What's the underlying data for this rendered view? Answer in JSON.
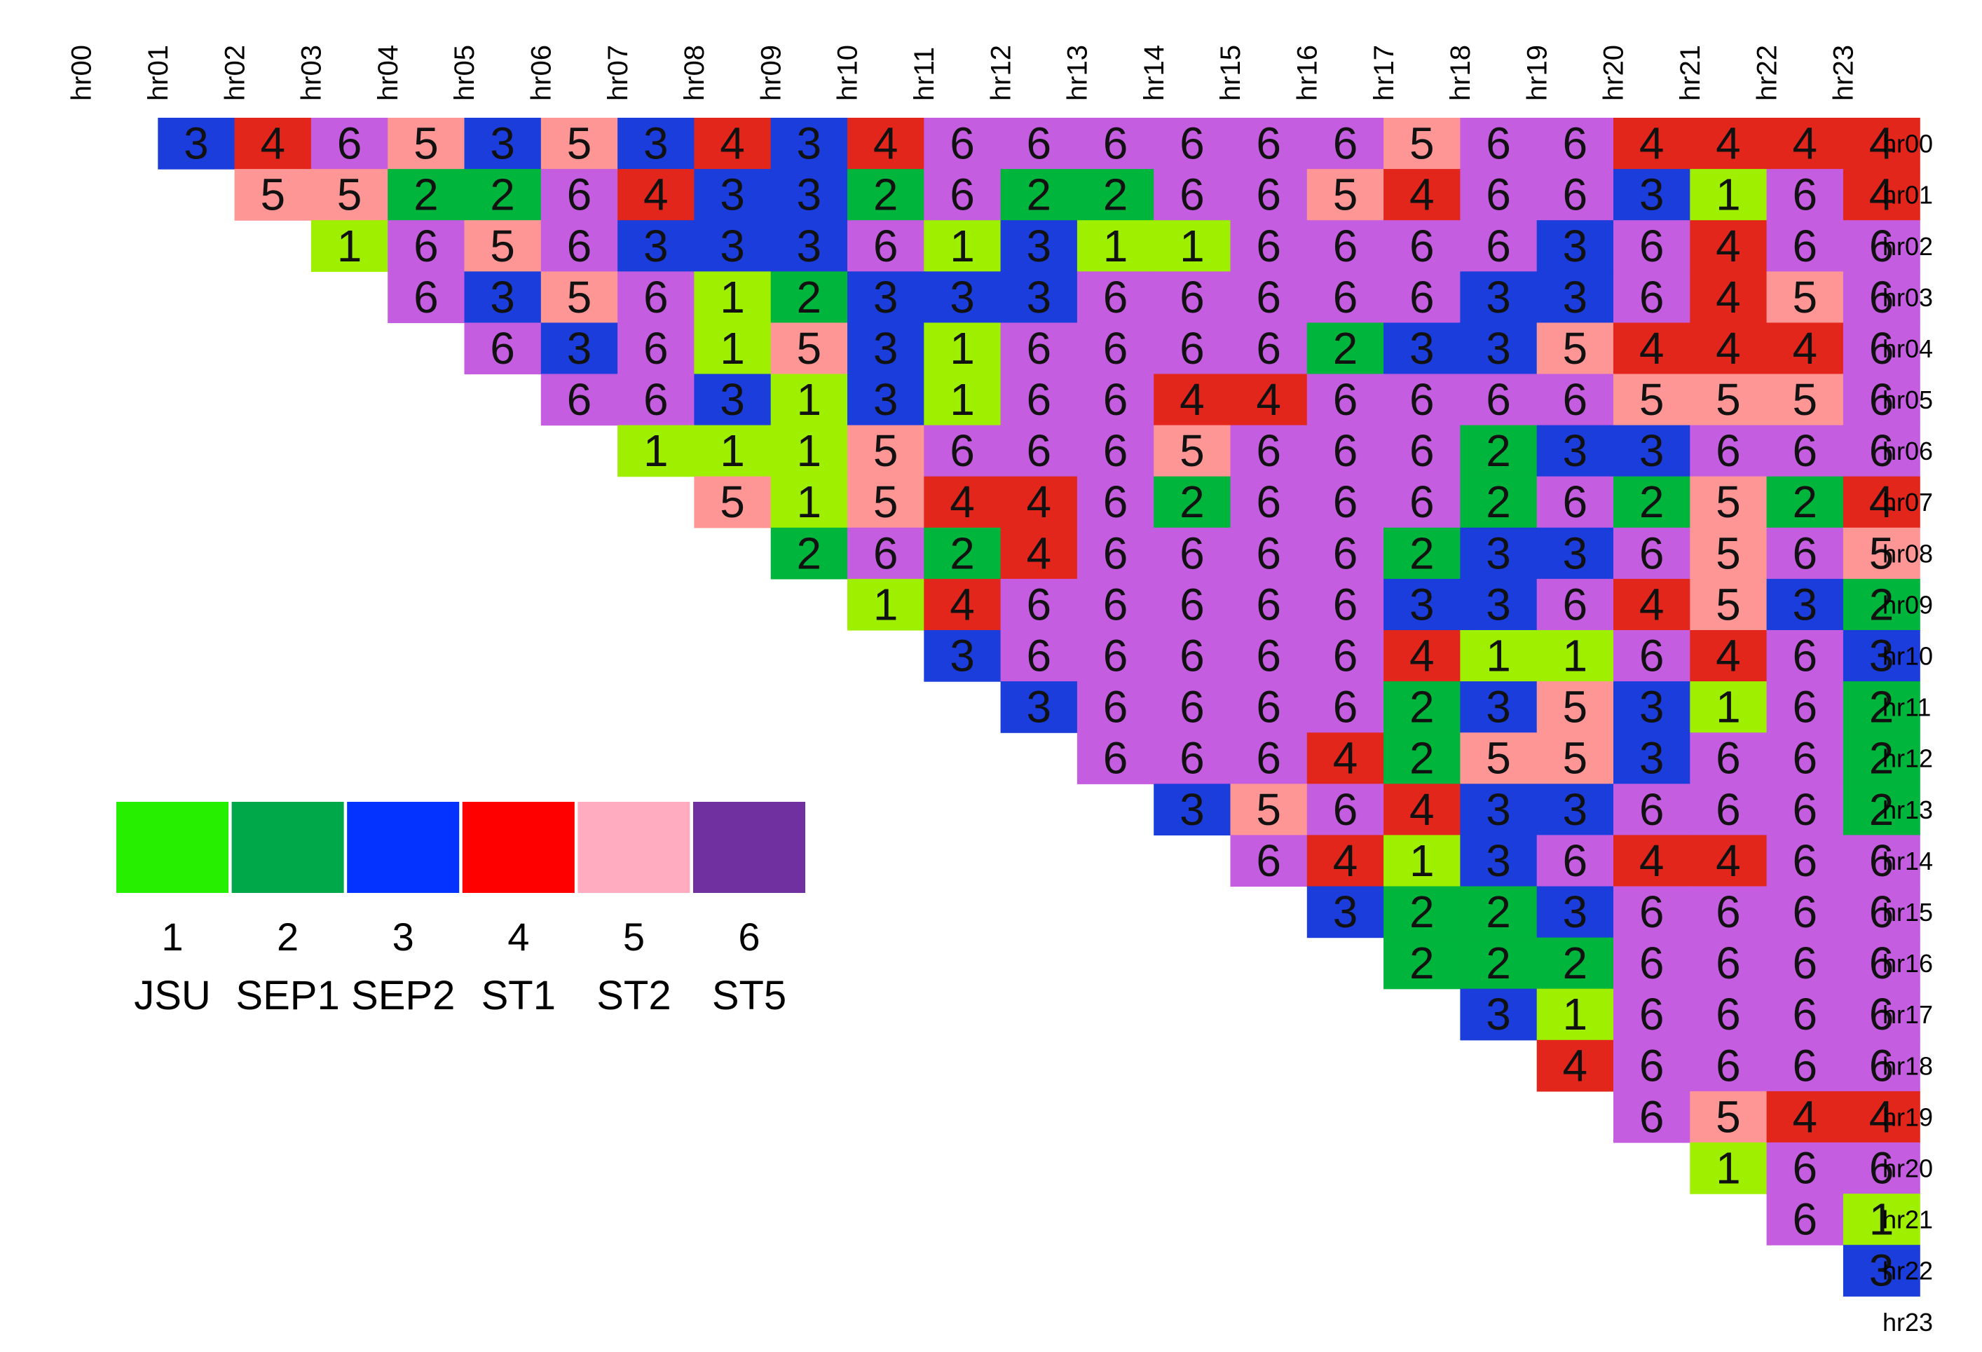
{
  "chart_data": {
    "type": "heatmap",
    "title": "",
    "xlabel": "",
    "ylabel": "",
    "x_labels": [
      "hr00",
      "hr01",
      "hr02",
      "hr03",
      "hr04",
      "hr05",
      "hr06",
      "hr07",
      "hr08",
      "hr09",
      "hr10",
      "hr11",
      "hr12",
      "hr13",
      "hr14",
      "hr15",
      "hr16",
      "hr17",
      "hr18",
      "hr19",
      "hr20",
      "hr21",
      "hr22",
      "hr23"
    ],
    "y_labels": [
      "hr00",
      "hr01",
      "hr02",
      "hr03",
      "hr04",
      "hr05",
      "hr06",
      "hr07",
      "hr08",
      "hr09",
      "hr10",
      "hr11",
      "hr12",
      "hr13",
      "hr14",
      "hr15",
      "hr16",
      "hr17",
      "hr18",
      "hr19",
      "hr20",
      "hr21",
      "hr22",
      "hr23"
    ],
    "rows": [
      [
        3,
        4,
        6,
        5,
        3,
        5,
        3,
        4,
        3,
        4,
        6,
        6,
        6,
        6,
        6,
        6,
        5,
        6,
        6,
        4,
        4,
        4,
        4
      ],
      [
        5,
        5,
        2,
        2,
        6,
        4,
        3,
        3,
        2,
        6,
        2,
        2,
        6,
        6,
        5,
        4,
        6,
        6,
        3,
        1,
        6,
        4
      ],
      [
        1,
        6,
        5,
        6,
        3,
        3,
        3,
        6,
        1,
        3,
        1,
        1,
        6,
        6,
        6,
        6,
        3,
        6,
        4,
        6,
        6
      ],
      [
        6,
        3,
        5,
        6,
        1,
        2,
        3,
        3,
        3,
        6,
        6,
        6,
        6,
        6,
        3,
        3,
        6,
        4,
        5,
        6
      ],
      [
        6,
        3,
        6,
        1,
        5,
        3,
        1,
        6,
        6,
        6,
        6,
        2,
        3,
        3,
        5,
        4,
        4,
        4,
        6
      ],
      [
        6,
        6,
        3,
        1,
        3,
        1,
        6,
        6,
        4,
        4,
        6,
        6,
        6,
        6,
        5,
        5,
        5,
        6
      ],
      [
        1,
        1,
        1,
        5,
        6,
        6,
        6,
        5,
        6,
        6,
        6,
        2,
        3,
        3,
        6,
        6,
        6
      ],
      [
        5,
        1,
        5,
        4,
        4,
        6,
        2,
        6,
        6,
        6,
        2,
        6,
        2,
        5,
        2,
        4
      ],
      [
        2,
        6,
        2,
        4,
        6,
        6,
        6,
        6,
        2,
        3,
        3,
        6,
        5,
        6,
        5
      ],
      [
        1,
        4,
        6,
        6,
        6,
        6,
        6,
        3,
        3,
        6,
        4,
        5,
        3,
        2
      ],
      [
        3,
        6,
        6,
        6,
        6,
        6,
        4,
        1,
        1,
        6,
        4,
        6,
        3
      ],
      [
        3,
        6,
        6,
        6,
        6,
        2,
        3,
        5,
        3,
        1,
        6,
        2
      ],
      [
        6,
        6,
        6,
        4,
        2,
        5,
        5,
        3,
        6,
        6,
        2
      ],
      [
        3,
        5,
        6,
        4,
        3,
        3,
        6,
        6,
        6,
        2
      ],
      [
        6,
        4,
        1,
        3,
        6,
        4,
        4,
        6,
        6
      ],
      [
        3,
        2,
        2,
        3,
        6,
        6,
        6,
        6
      ],
      [
        2,
        2,
        2,
        6,
        6,
        6,
        6
      ],
      [
        3,
        1,
        6,
        6,
        6,
        6
      ],
      [
        4,
        6,
        6,
        6,
        6
      ],
      [
        6,
        5,
        4,
        4
      ],
      [
        1,
        6,
        6
      ],
      [
        6,
        1
      ],
      [
        3
      ],
      []
    ],
    "row_start_col": "r+1 (upper triangle above diagonal)",
    "cell_colors": {
      "1": "#9ff000",
      "2": "#00b53b",
      "3": "#1a3ddb",
      "4": "#e3261c",
      "5": "#ff9696",
      "6": "#c45de0"
    },
    "legend": {
      "items": [
        {
          "num": "1",
          "name": "JSU",
          "color": "#26f000"
        },
        {
          "num": "2",
          "name": "SEP1",
          "color": "#00a84a"
        },
        {
          "num": "3",
          "name": "SEP2",
          "color": "#0433ff"
        },
        {
          "num": "4",
          "name": "ST1",
          "color": "#ff0000"
        },
        {
          "num": "5",
          "name": "ST2",
          "color": "#ffabc0"
        },
        {
          "num": "6",
          "name": "ST5",
          "color": "#7030a0"
        }
      ]
    }
  }
}
